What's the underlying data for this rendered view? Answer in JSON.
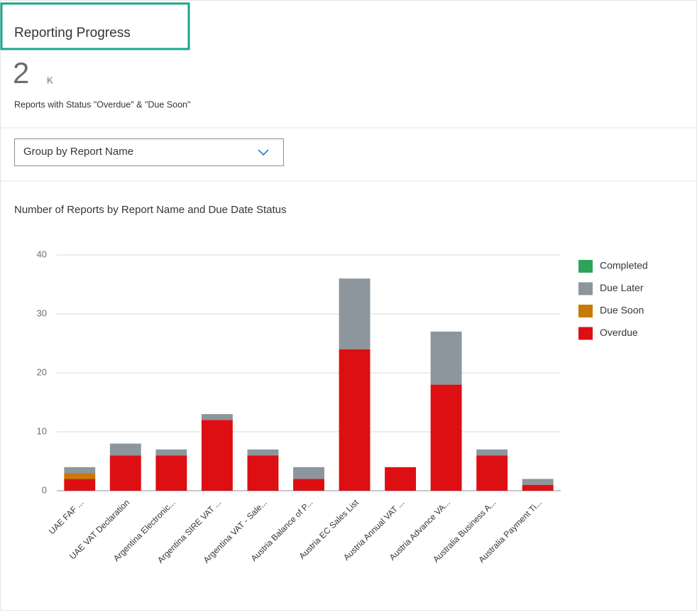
{
  "header": {
    "title": "Reporting Progress",
    "kpi_value": "2",
    "kpi_unit": "K",
    "kpi_subtitle": "Reports with Status \"Overdue\" & \"Due Soon\""
  },
  "dropdown": {
    "label": "Group by Report Name"
  },
  "chart_data": {
    "type": "stacked_bar",
    "title": "Number of Reports by Report Name and Due Date Status",
    "categories": [
      "UAE FAF ...",
      "UAE VAT Declaration",
      "Argentina Electronic...",
      "Argentina SIRE VAT ...",
      "Argentina VAT - Sale...",
      "Austria Balance of P...",
      "Austria EC Sales List",
      "Austria Annual VAT ...",
      "Austria Advance VA...",
      "Australia Business A...",
      "Australia Payment Ti..."
    ],
    "series": [
      {
        "name": "Completed",
        "color": "#2ea35a",
        "values": [
          0,
          0,
          0,
          0,
          0,
          0,
          0,
          0,
          0,
          0,
          0
        ]
      },
      {
        "name": "Due Later",
        "color": "#8c969c",
        "values": [
          1,
          2,
          1,
          1,
          1,
          2,
          12,
          0,
          9,
          1,
          1
        ]
      },
      {
        "name": "Due Soon",
        "color": "#c87a05",
        "values": [
          1,
          0,
          0,
          0,
          0,
          0,
          0,
          0,
          0,
          0,
          0
        ]
      },
      {
        "name": "Overdue",
        "color": "#dd0f12",
        "values": [
          2,
          6,
          6,
          12,
          6,
          2,
          24,
          4,
          18,
          6,
          1
        ]
      }
    ],
    "ylim": [
      0,
      40
    ],
    "yticks": [
      0,
      10,
      20,
      30,
      40
    ],
    "grid": true,
    "legend": "right"
  }
}
